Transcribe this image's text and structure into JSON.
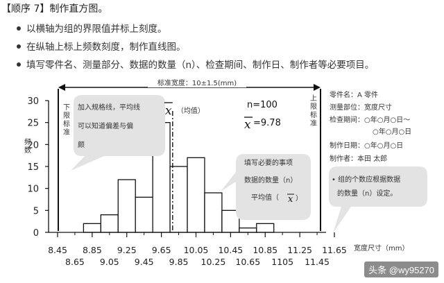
{
  "steps": {
    "heading": "【顺序 7】制作直方图。",
    "bullets": [
      "以横轴为组的界限值并标上刻度。",
      "在纵轴上标上频数刻度，制作直线图。",
      "填写零件名、测量部分、数据的数量（n）、检查期间、制作日、制作者等必要项目。"
    ]
  },
  "chart_data": {
    "type": "bar",
    "ylabel": "频数",
    "xlabel": "宽度尺寸（mm）",
    "ylim": [
      0,
      30
    ],
    "yticks": [
      "0",
      "5",
      "10",
      "15",
      "20",
      "25",
      "30"
    ],
    "xtick_row1": [
      "8.45",
      "8.85",
      "9.25",
      "9.65",
      "10.05",
      "10.45",
      "10.85",
      "11.25",
      "11.65"
    ],
    "xtick_row2": [
      "8.65",
      "9.05",
      "9.45",
      "9.85",
      "10.25",
      "10.65",
      "1105",
      "11.45"
    ],
    "bin_edges": [
      8.75,
      8.95,
      9.15,
      9.35,
      9.55,
      9.75,
      9.95,
      10.15,
      10.35,
      10.55,
      10.75,
      10.95
    ],
    "values": [
      2,
      4,
      12,
      8,
      25,
      15,
      17,
      9,
      5,
      1,
      2
    ],
    "mean": 9.78,
    "n": 100,
    "lower_limit": 8.45,
    "upper_limit": 11.65,
    "lower_limit_label": "下限标准",
    "upper_limit_label": "上限标准",
    "spec_label": "标准宽度：10±1.5(mm)",
    "mean_label": "（均值）",
    "n_label": "n=100",
    "mean_value_label": "=9.78",
    "xbar_symbol": "x",
    "callout_grid": [
      "加入规格线，平均线",
      "可以知道偏差与偏",
      "颇"
    ],
    "callout_required": [
      "填写必要的事项",
      "数据的数量（n）",
      "平均值（"
    ],
    "callout_group": [
      "• 组的个数应根据数据",
      "的数量（n）设定。"
    ]
  },
  "info": {
    "lines": [
      "零件名：A 零件",
      "测量部位：宽度尺寸",
      "检查期间：○年○月○日～",
      "○年○月○日",
      "制作日期：○年○月○日",
      "制作者：本田 太郎"
    ]
  },
  "watermark": "头条 @wy95270"
}
